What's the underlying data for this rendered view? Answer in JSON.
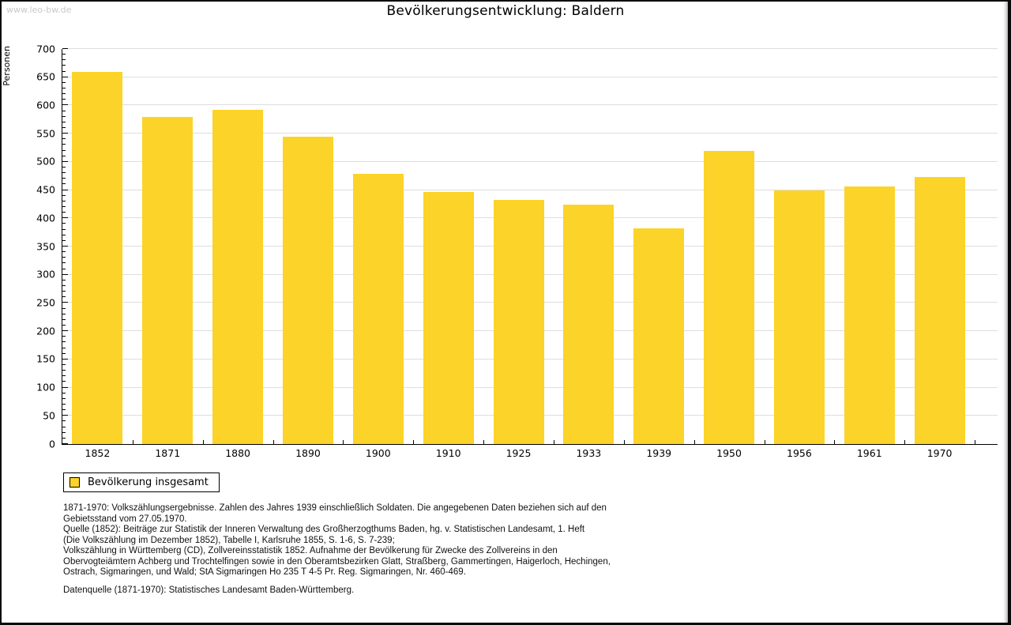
{
  "watermark": "www.leo-bw.de",
  "header": {
    "title": "Bevölkerungsentwicklung: Baldern"
  },
  "legend": {
    "label": "Bevölkerung insgesamt",
    "swatch_color": "#fcd328"
  },
  "footnotes": {
    "p1": "1871-1970: Volkszählungsergebnisse. Zahlen des Jahres 1939 einschließlich Soldaten. Die angegebenen Daten beziehen sich auf den\nGebietsstand vom 27.05.1970.\nQuelle (1852): Beiträge zur Statistik der Inneren Verwaltung des Großherzogthums Baden, hg. v. Statistischen Landesamt, 1. Heft\n(Die Volkszählung im Dezember 1852), Tabelle I, Karlsruhe 1855, S. 1-6, S. 7-239;\nVolkszählung in Württemberg (CD), Zollvereinsstatistik 1852. Aufnahme der Bevölkerung für Zwecke des Zollvereins in den\nObervogteiämtern Achberg und Trochtelfingen sowie in den Oberamtsbezirken Glatt, Straßberg, Gammertingen, Haigerloch, Hechingen,\nOstrach, Sigmaringen, und Wald; StA Sigmaringen Ho 235 T 4-5 Pr. Reg. Sigmaringen, Nr. 460-469.",
    "p2": "Datenquelle (1871-1970): Statistisches Landesamt Baden-Württemberg."
  },
  "chart_data": {
    "type": "bar",
    "title": "Bevölkerungsentwicklung: Baldern",
    "ylabel": "Personen",
    "xlabel": "",
    "categories": [
      "1852",
      "1871",
      "1880",
      "1890",
      "1900",
      "1910",
      "1925",
      "1933",
      "1939",
      "1950",
      "1956",
      "1961",
      "1970"
    ],
    "values": [
      660,
      579,
      592,
      544,
      479,
      447,
      432,
      424,
      382,
      519,
      450,
      456,
      473
    ],
    "series_name": "Bevölkerung insgesamt",
    "ylim": [
      0,
      700
    ],
    "y_major_step": 50,
    "y_minor_step": 10,
    "grid": "horizontal",
    "legend_position": "bottom-left",
    "bar_color": "#fcd328",
    "gridline_color": "#dedede",
    "axis_color": "#000000",
    "watermark_color": "#c9c9c9"
  }
}
